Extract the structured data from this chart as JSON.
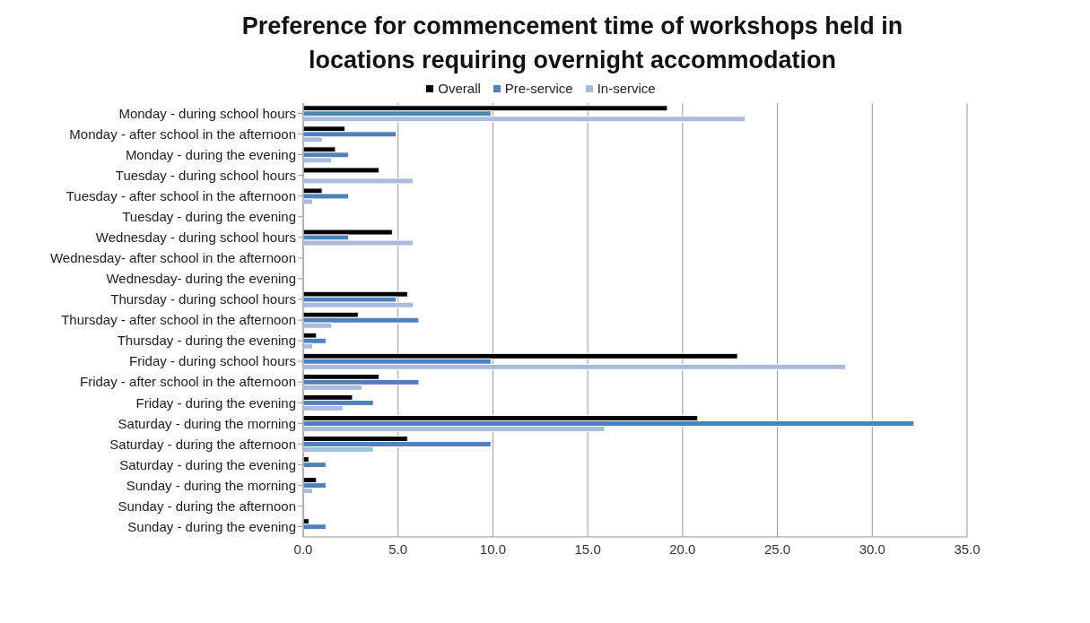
{
  "chart_data": {
    "type": "bar",
    "orientation": "horizontal",
    "title": "Preference for commencement time of workshops held in locations requiring overnight accommodation",
    "categories": [
      "Monday - during school hours",
      "Monday - after school in the afternoon",
      "Monday - during the evening",
      "Tuesday - during school hours",
      "Tuesday - after school in the afternoon",
      "Tuesday - during the evening",
      "Wednesday - during school hours",
      "Wednesday- after school in the afternoon",
      "Wednesday- during the evening",
      "Thursday - during school hours",
      "Thursday - after school in the afternoon",
      "Thursday - during the evening",
      "Friday - during school hours",
      "Friday - after school in the afternoon",
      "Friday - during the evening",
      "Saturday - during the morning",
      "Saturday - during the afternoon",
      "Saturday - during the evening",
      "Sunday - during the morning",
      "Sunday - during the afternoon",
      "Sunday - during the evening"
    ],
    "series": [
      {
        "name": "Overall",
        "color": "#000000",
        "values": [
          19.2,
          2.2,
          1.7,
          4.0,
          1.0,
          0,
          4.7,
          0,
          0,
          5.5,
          2.9,
          0.7,
          22.9,
          4.0,
          2.6,
          20.8,
          5.5,
          0.3,
          0.7,
          0,
          0.3
        ]
      },
      {
        "name": "Pre-service",
        "color": "#4f81bd",
        "values": [
          9.9,
          4.9,
          2.4,
          0,
          2.4,
          0,
          2.4,
          0,
          0,
          4.9,
          6.1,
          1.2,
          9.9,
          6.1,
          3.7,
          32.2,
          9.9,
          1.2,
          1.2,
          0,
          1.2
        ]
      },
      {
        "name": "In-service",
        "color": "#aabbdd",
        "values": [
          23.3,
          1.0,
          1.5,
          5.8,
          0.5,
          0,
          5.8,
          0,
          0,
          5.8,
          1.5,
          0.5,
          28.6,
          3.1,
          2.1,
          15.9,
          3.7,
          0,
          0.5,
          0,
          0
        ]
      }
    ],
    "xlim": [
      0,
      35
    ],
    "xticks": [
      {
        "value": 0,
        "label": "0.0"
      },
      {
        "value": 5,
        "label": "5.0"
      },
      {
        "value": 10,
        "label": "10.0"
      },
      {
        "value": 15,
        "label": "15.0"
      },
      {
        "value": 20,
        "label": "20.0"
      },
      {
        "value": 25,
        "label": "25.0"
      },
      {
        "value": 30,
        "label": "30.0"
      },
      {
        "value": 35,
        "label": "35.0"
      }
    ],
    "grid": "x",
    "legend": "top"
  }
}
